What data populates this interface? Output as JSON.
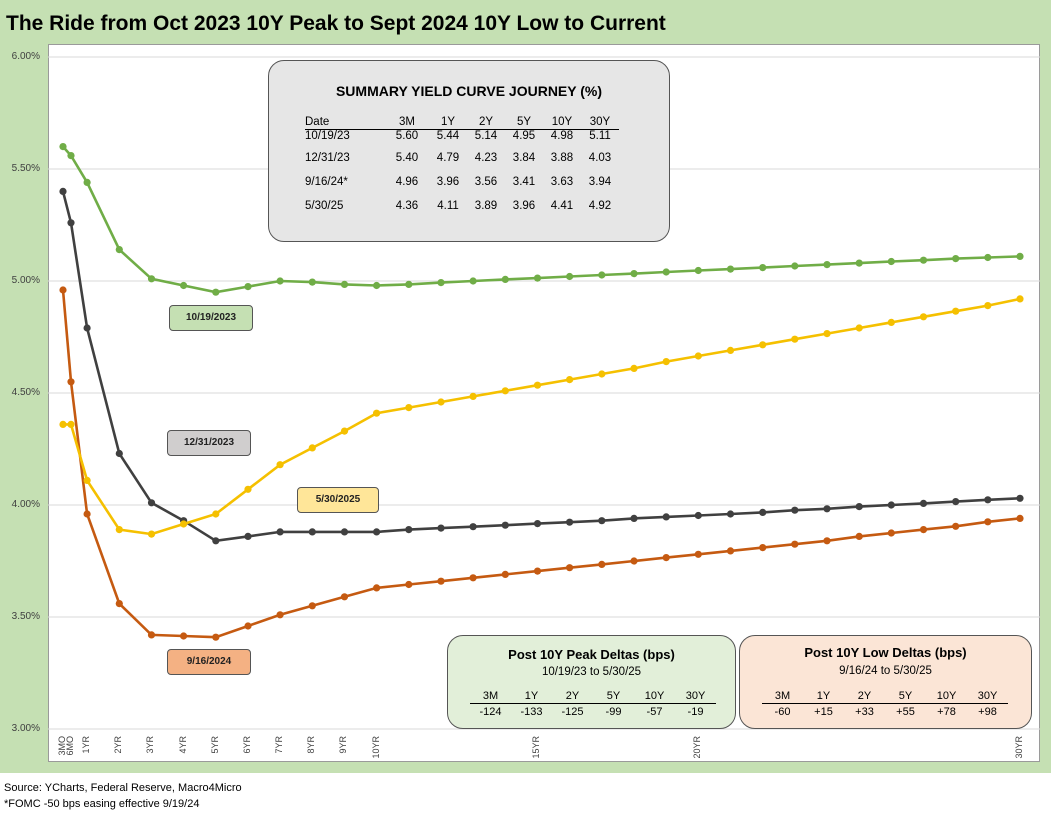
{
  "title": "The Ride from Oct 2023 10Y Peak to Sept 2024 10Y Low to Current",
  "chart_data": {
    "type": "line",
    "title": "The Ride from Oct 2023 10Y Peak to Sept 2024 10Y Low to Current",
    "ylim": [
      3.0,
      6.0
    ],
    "yticks": [
      "3.00%",
      "3.50%",
      "4.00%",
      "4.50%",
      "5.00%",
      "5.50%",
      "6.00%"
    ],
    "xticks": [
      "3MO",
      "6MO",
      "1YR",
      "2YR",
      "3YR",
      "4YR",
      "5YR",
      "6YR",
      "7YR",
      "8YR",
      "9YR",
      "10YR",
      "15YR",
      "20YR",
      "30YR"
    ],
    "x": [
      0.25,
      0.5,
      1,
      2,
      3,
      4,
      5,
      6,
      7,
      8,
      9,
      10,
      11,
      12,
      13,
      14,
      15,
      16,
      17,
      18,
      19,
      20,
      21,
      22,
      23,
      24,
      25,
      26,
      27,
      28,
      29,
      30
    ],
    "series": [
      {
        "name": "10/19/2023",
        "color": "#70ad47",
        "values": [
          5.6,
          5.56,
          5.44,
          5.14,
          5.01,
          4.98,
          4.95,
          4.975,
          5.0,
          4.995,
          4.985,
          4.98,
          4.985,
          4.993,
          5.0,
          5.007,
          5.013,
          5.02,
          5.027,
          5.033,
          5.04,
          5.047,
          5.053,
          5.06,
          5.067,
          5.073,
          5.08,
          5.087,
          5.093,
          5.1,
          5.105,
          5.11
        ]
      },
      {
        "name": "12/31/2023",
        "color": "#404040",
        "values": [
          5.4,
          5.26,
          4.79,
          4.23,
          4.01,
          3.93,
          3.84,
          3.86,
          3.88,
          3.88,
          3.88,
          3.88,
          3.89,
          3.897,
          3.903,
          3.91,
          3.917,
          3.923,
          3.93,
          3.94,
          3.947,
          3.953,
          3.96,
          3.967,
          3.977,
          3.983,
          3.993,
          4.0,
          4.007,
          4.015,
          4.023,
          4.03
        ]
      },
      {
        "name": "9/16/2024",
        "color": "#c55a11",
        "values": [
          4.96,
          4.55,
          3.96,
          3.56,
          3.42,
          3.415,
          3.41,
          3.46,
          3.51,
          3.55,
          3.59,
          3.63,
          3.645,
          3.66,
          3.675,
          3.69,
          3.705,
          3.72,
          3.735,
          3.75,
          3.765,
          3.78,
          3.795,
          3.81,
          3.825,
          3.84,
          3.86,
          3.875,
          3.89,
          3.905,
          3.925,
          3.94
        ]
      },
      {
        "name": "5/30/2025",
        "color": "#f5c000",
        "values": [
          4.36,
          4.36,
          4.11,
          3.89,
          3.87,
          3.915,
          3.96,
          4.07,
          4.18,
          4.255,
          4.33,
          4.41,
          4.435,
          4.46,
          4.485,
          4.51,
          4.535,
          4.56,
          4.585,
          4.61,
          4.64,
          4.665,
          4.69,
          4.715,
          4.74,
          4.765,
          4.79,
          4.815,
          4.84,
          4.865,
          4.89,
          4.92
        ]
      }
    ],
    "labels": {
      "oct": "10/19/2023",
      "dec": "12/31/2023",
      "sep": "9/16/2024",
      "may": "5/30/2025"
    },
    "summary": {
      "title": "SUMMARY YIELD CURVE JOURNEY (%)",
      "headers": [
        "Date",
        "3M",
        "1Y",
        "2Y",
        "5Y",
        "10Y",
        "30Y"
      ],
      "rows": [
        [
          "10/19/23",
          "5.60",
          "5.44",
          "5.14",
          "4.95",
          "4.98",
          "5.11"
        ],
        [
          "12/31/23",
          "5.40",
          "4.79",
          "4.23",
          "3.84",
          "3.88",
          "4.03"
        ],
        [
          "9/16/24*",
          "4.96",
          "3.96",
          "3.56",
          "3.41",
          "3.63",
          "3.94"
        ],
        [
          "5/30/25",
          "4.36",
          "4.11",
          "3.89",
          "3.96",
          "4.41",
          "4.92"
        ]
      ]
    },
    "peak_deltas": {
      "title": "Post 10Y Peak Deltas (bps)",
      "subtitle": "10/19/23 to 5/30/25",
      "headers": [
        "3M",
        "1Y",
        "2Y",
        "5Y",
        "10Y",
        "30Y"
      ],
      "values": [
        "-124",
        "-133",
        "-125",
        "-99",
        "-57",
        "-19"
      ]
    },
    "low_deltas": {
      "title": "Post 10Y Low Deltas (bps)",
      "subtitle": "9/16/24 to 5/30/25",
      "headers": [
        "3M",
        "1Y",
        "2Y",
        "5Y",
        "10Y",
        "30Y"
      ],
      "values": [
        "-60",
        "+15",
        "+33",
        "+55",
        "+78",
        "+98"
      ]
    }
  },
  "sources": [
    "Source: YCharts, Federal Reserve, Macro4Micro",
    "*FOMC -50 bps easing effective  9/19/24"
  ]
}
